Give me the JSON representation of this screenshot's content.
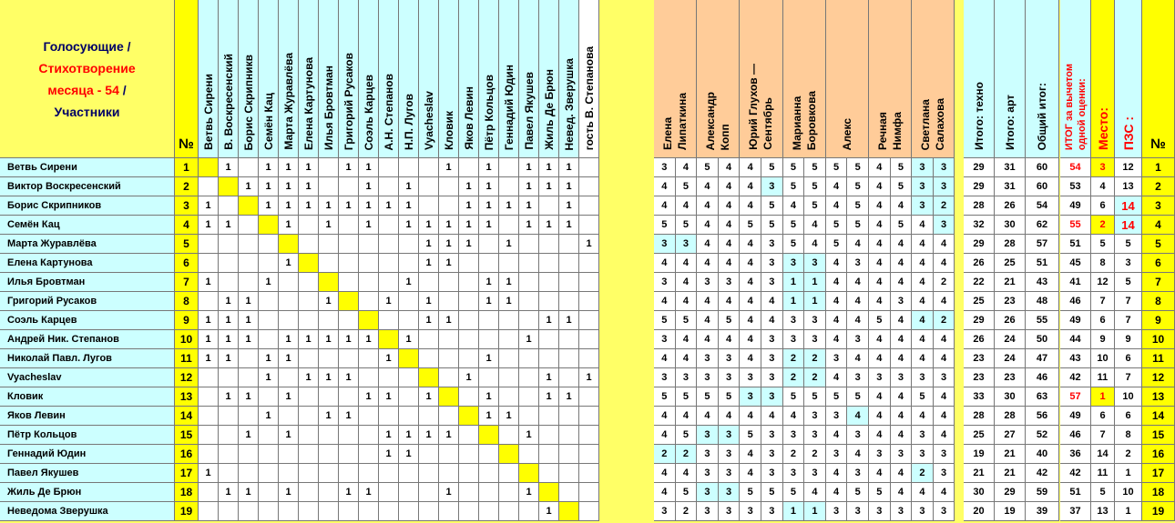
{
  "header": {
    "title_line1": "Голосующие /",
    "title_line2": "Стихотворение",
    "title_line3a": "месяца - 54",
    "title_line3b": " /",
    "title_line4": "Участники",
    "num_label": "№",
    "right_num_label": "№"
  },
  "voters": [
    "Ветвь Сирени",
    "В. Воскресенский",
    "Борис Скрипникв",
    "Семён Кац",
    "Марта Журавлёва",
    "Елена Картунова",
    "Илья Бровтман",
    "Григорий Русаков",
    "Соэль Карцев",
    "А.Н. Степанов",
    "Н.П. Лугов",
    "Vyacheslav",
    "Кловик",
    "Яков Левин",
    "Пётр Кольцов",
    "Геннадий Юдин",
    "Павел Якушев",
    "Жиль Де Брюн",
    "Невед. Зверушка",
    "гость В. Степанова"
  ],
  "experts": [
    [
      "Елена",
      "Липаткина"
    ],
    [
      "Александр",
      "Копп"
    ],
    [
      "Юрий Глухов —",
      "Сентябрь"
    ],
    [
      "Марианна",
      "Боровкова"
    ],
    [
      "Алекс",
      ""
    ],
    [
      "Речная",
      "Нимфа"
    ],
    [
      "Светлана",
      "Салахова"
    ]
  ],
  "totals_headers": [
    "Итого: техно",
    "Итого: арт",
    "Общий итог:"
  ],
  "itog_header": [
    "ИТОГ за вычетом",
    "одной оценки:"
  ],
  "place_header": "Место:",
  "pzs_header": "ПЗС :",
  "colors": {
    "background": "#ffff66",
    "names": "#ccffff",
    "votes": "#ffffff",
    "diag": "#ffff00",
    "expert_head": "#ffcc99",
    "expert_hi": "#ccffff",
    "red": "#ff0000"
  },
  "rows": [
    {
      "name": "Ветвь Сирени",
      "num": "1",
      "votes": [
        "",
        "1",
        "",
        "1",
        "1",
        "1",
        "",
        "1",
        "1",
        "",
        "",
        "",
        "1",
        "",
        "1",
        "",
        "1",
        "1",
        "1",
        ""
      ],
      "experts": [
        "3",
        "4",
        "5",
        "4",
        "4",
        "5",
        "5",
        "5",
        "5",
        "5",
        "4",
        "5",
        "3",
        "3"
      ],
      "hi": [
        12,
        13
      ],
      "techno": "29",
      "art": "31",
      "total": "60",
      "itog": "54",
      "itog_red": true,
      "place": "3",
      "place_hl": true,
      "pzs": "12",
      "right": "1"
    },
    {
      "name": "Виктор Воскресенский",
      "num": "2",
      "votes": [
        "",
        "",
        "1",
        "1",
        "1",
        "1",
        "",
        "",
        "1",
        "",
        "1",
        "",
        "",
        "1",
        "1",
        "",
        "1",
        "1",
        "1",
        ""
      ],
      "experts": [
        "4",
        "5",
        "4",
        "4",
        "4",
        "3",
        "5",
        "5",
        "4",
        "5",
        "4",
        "5",
        "3",
        "3"
      ],
      "hi": [
        5,
        12,
        13
      ],
      "techno": "29",
      "art": "31",
      "total": "60",
      "itog": "53",
      "place": "4",
      "pzs": "13",
      "right": "2"
    },
    {
      "name": "Борис Скрипников",
      "num": "3",
      "votes": [
        "1",
        "",
        "",
        "1",
        "1",
        "1",
        "1",
        "1",
        "1",
        "1",
        "1",
        "",
        "",
        "1",
        "1",
        "1",
        "1",
        "",
        "1",
        ""
      ],
      "experts": [
        "4",
        "4",
        "4",
        "4",
        "4",
        "5",
        "4",
        "5",
        "4",
        "5",
        "4",
        "4",
        "3",
        "2"
      ],
      "hi": [
        12,
        13
      ],
      "techno": "28",
      "art": "26",
      "total": "54",
      "itog": "49",
      "place": "6",
      "pzs": "14",
      "pzs_red": true,
      "right": "3"
    },
    {
      "name": "Семён Кац",
      "num": "4",
      "votes": [
        "1",
        "1",
        "",
        "",
        "1",
        "",
        "1",
        "",
        "1",
        "",
        "1",
        "1",
        "1",
        "1",
        "1",
        "",
        "1",
        "1",
        "1",
        ""
      ],
      "experts": [
        "5",
        "5",
        "4",
        "4",
        "5",
        "5",
        "5",
        "4",
        "5",
        "5",
        "4",
        "5",
        "4",
        "3"
      ],
      "hi": [
        13
      ],
      "techno": "32",
      "art": "30",
      "total": "62",
      "itog": "55",
      "itog_red": true,
      "place": "2",
      "place_hl": true,
      "pzs": "14",
      "pzs_red": true,
      "right": "4"
    },
    {
      "name": "Марта Журавлёва",
      "num": "5",
      "votes": [
        "",
        "",
        "",
        "",
        "",
        "",
        "",
        "",
        "",
        "",
        "",
        "1",
        "1",
        "1",
        "",
        "1",
        "",
        "",
        "",
        "1"
      ],
      "experts": [
        "3",
        "3",
        "4",
        "4",
        "4",
        "3",
        "5",
        "4",
        "5",
        "4",
        "4",
        "4",
        "4",
        "4"
      ],
      "hi": [
        0,
        1
      ],
      "techno": "29",
      "art": "28",
      "total": "57",
      "itog": "51",
      "place": "5",
      "pzs": "5",
      "right": "5"
    },
    {
      "name": "Елена Картунова",
      "num": "6",
      "votes": [
        "",
        "",
        "",
        "",
        "1",
        "",
        "",
        "",
        "",
        "",
        "",
        "1",
        "1",
        "",
        "",
        "",
        "",
        "",
        "",
        ""
      ],
      "experts": [
        "4",
        "4",
        "4",
        "4",
        "4",
        "3",
        "3",
        "3",
        "4",
        "3",
        "4",
        "4",
        "4",
        "4"
      ],
      "hi": [
        6,
        7
      ],
      "techno": "26",
      "art": "25",
      "total": "51",
      "itog": "45",
      "place": "8",
      "pzs": "3",
      "right": "6"
    },
    {
      "name": "Илья Бровтман",
      "num": "7",
      "votes": [
        "1",
        "",
        "",
        "1",
        "",
        "",
        "",
        "",
        "",
        "",
        "1",
        "",
        "",
        "",
        "1",
        "1",
        "",
        "",
        "",
        ""
      ],
      "experts": [
        "3",
        "4",
        "3",
        "3",
        "4",
        "3",
        "1",
        "1",
        "4",
        "4",
        "4",
        "4",
        "4",
        "2"
      ],
      "hi": [
        6,
        7
      ],
      "techno": "22",
      "art": "21",
      "total": "43",
      "itog": "41",
      "place": "12",
      "pzs": "5",
      "right": "7"
    },
    {
      "name": "Григорий Русаков",
      "num": "8",
      "votes": [
        "",
        "1",
        "1",
        "",
        "",
        "",
        "1",
        "",
        "",
        "1",
        "",
        "1",
        "",
        "",
        "1",
        "1",
        "",
        "",
        "",
        ""
      ],
      "experts": [
        "4",
        "4",
        "4",
        "4",
        "4",
        "4",
        "1",
        "1",
        "4",
        "4",
        "4",
        "3",
        "4",
        "4"
      ],
      "hi": [
        6,
        7
      ],
      "techno": "25",
      "art": "23",
      "total": "48",
      "itog": "46",
      "place": "7",
      "pzs": "7",
      "right": "8"
    },
    {
      "name": "Соэль Карцев",
      "num": "9",
      "votes": [
        "1",
        "1",
        "1",
        "",
        "",
        "",
        "",
        "",
        "",
        "",
        "",
        "1",
        "1",
        "",
        "",
        "",
        "",
        "1",
        "1",
        ""
      ],
      "experts": [
        "5",
        "5",
        "4",
        "5",
        "4",
        "4",
        "3",
        "3",
        "4",
        "4",
        "5",
        "4",
        "4",
        "2"
      ],
      "hi": [
        12,
        13
      ],
      "techno": "29",
      "art": "26",
      "total": "55",
      "itog": "49",
      "place": "6",
      "pzs": "7",
      "right": "9"
    },
    {
      "name": "Андрей Ник. Степанов",
      "num": "10",
      "votes": [
        "1",
        "1",
        "1",
        "",
        "1",
        "1",
        "1",
        "1",
        "1",
        "",
        "1",
        "",
        "",
        "",
        "",
        "",
        "1",
        "",
        "",
        ""
      ],
      "experts": [
        "3",
        "4",
        "4",
        "4",
        "4",
        "3",
        "3",
        "3",
        "4",
        "3",
        "4",
        "4",
        "4",
        "4"
      ],
      "hi": [],
      "techno": "26",
      "art": "24",
      "total": "50",
      "itog": "44",
      "place": "9",
      "pzs": "9",
      "right": "10"
    },
    {
      "name": "Николай Павл. Лугов",
      "num": "11",
      "votes": [
        "1",
        "1",
        "",
        "1",
        "1",
        "",
        "",
        "",
        "",
        "1",
        "",
        "",
        "",
        "",
        "1",
        "",
        "",
        "",
        "",
        ""
      ],
      "experts": [
        "4",
        "4",
        "3",
        "3",
        "4",
        "3",
        "2",
        "2",
        "3",
        "4",
        "4",
        "4",
        "4",
        "4"
      ],
      "hi": [
        6,
        7
      ],
      "techno": "23",
      "art": "24",
      "total": "47",
      "itog": "43",
      "place": "10",
      "pzs": "6",
      "right": "11"
    },
    {
      "name": "Vyacheslav",
      "num": "12",
      "votes": [
        "",
        "",
        "",
        "1",
        "",
        "1",
        "1",
        "1",
        "",
        "",
        "",
        "",
        "",
        "1",
        "",
        "",
        "",
        "1",
        "",
        "1"
      ],
      "experts": [
        "3",
        "3",
        "3",
        "3",
        "3",
        "3",
        "2",
        "2",
        "4",
        "3",
        "3",
        "3",
        "3",
        "3"
      ],
      "hi": [
        6,
        7
      ],
      "techno": "23",
      "art": "23",
      "total": "46",
      "itog": "42",
      "place": "11",
      "pzs": "7",
      "right": "12"
    },
    {
      "name": "Кловик",
      "num": "13",
      "votes": [
        "",
        "1",
        "1",
        "",
        "1",
        "",
        "",
        "",
        "1",
        "1",
        "",
        "1",
        "",
        "",
        "1",
        "",
        "",
        "1",
        "1",
        ""
      ],
      "experts": [
        "5",
        "5",
        "5",
        "5",
        "3",
        "3",
        "5",
        "5",
        "5",
        "5",
        "4",
        "4",
        "5",
        "4"
      ],
      "hi": [
        4,
        5
      ],
      "techno": "33",
      "art": "30",
      "total": "63",
      "itog": "57",
      "itog_red": true,
      "place": "1",
      "place_hl": true,
      "pzs": "10",
      "right": "13"
    },
    {
      "name": "Яков Левин",
      "num": "14",
      "votes": [
        "",
        "",
        "",
        "1",
        "",
        "",
        "1",
        "1",
        "",
        "",
        "",
        "",
        "",
        "",
        "1",
        "1",
        "",
        "",
        "",
        ""
      ],
      "experts": [
        "4",
        "4",
        "4",
        "4",
        "4",
        "4",
        "4",
        "3",
        "3",
        "4",
        "4",
        "4",
        "4",
        "4"
      ],
      "hi": [
        9
      ],
      "techno": "28",
      "art": "28",
      "total": "56",
      "itog": "49",
      "place": "6",
      "pzs": "6",
      "right": "14"
    },
    {
      "name": "Пётр Кольцов",
      "num": "15",
      "votes": [
        "",
        "",
        "1",
        "",
        "1",
        "",
        "",
        "",
        "",
        "1",
        "1",
        "1",
        "1",
        "",
        "",
        "",
        "1",
        "",
        "",
        ""
      ],
      "experts": [
        "4",
        "5",
        "3",
        "3",
        "5",
        "3",
        "3",
        "3",
        "4",
        "3",
        "4",
        "4",
        "3",
        "4"
      ],
      "hi": [
        2,
        3
      ],
      "techno": "25",
      "art": "27",
      "total": "52",
      "itog": "46",
      "place": "7",
      "pzs": "8",
      "right": "15"
    },
    {
      "name": "Геннадий Юдин",
      "num": "16",
      "votes": [
        "",
        "",
        "",
        "",
        "",
        "",
        "",
        "",
        "",
        "1",
        "1",
        "",
        "",
        "",
        "",
        "",
        "",
        "",
        "",
        ""
      ],
      "experts": [
        "2",
        "2",
        "3",
        "3",
        "4",
        "3",
        "2",
        "2",
        "3",
        "4",
        "3",
        "3",
        "3",
        "3"
      ],
      "hi": [
        0,
        1
      ],
      "techno": "19",
      "art": "21",
      "total": "40",
      "itog": "36",
      "place": "14",
      "pzs": "2",
      "right": "16"
    },
    {
      "name": "Павел Якушев",
      "num": "17",
      "votes": [
        "1",
        "",
        "",
        "",
        "",
        "",
        "",
        "",
        "",
        "",
        "",
        "",
        "",
        "",
        "",
        "",
        "",
        "",
        "",
        ""
      ],
      "experts": [
        "4",
        "4",
        "3",
        "3",
        "4",
        "3",
        "3",
        "3",
        "4",
        "3",
        "4",
        "4",
        "2",
        "3"
      ],
      "hi": [
        12
      ],
      "techno": "21",
      "art": "21",
      "total": "42",
      "itog": "42",
      "place": "11",
      "pzs": "1",
      "right": "17"
    },
    {
      "name": "Жиль Де Брюн",
      "num": "18",
      "votes": [
        "",
        "1",
        "1",
        "",
        "1",
        "",
        "",
        "1",
        "1",
        "",
        "",
        "",
        "1",
        "",
        "",
        "",
        "1",
        "",
        "",
        ""
      ],
      "experts": [
        "4",
        "5",
        "3",
        "3",
        "5",
        "5",
        "5",
        "4",
        "4",
        "5",
        "5",
        "4",
        "4",
        "4"
      ],
      "hi": [
        2,
        3
      ],
      "techno": "30",
      "art": "29",
      "total": "59",
      "itog": "51",
      "place": "5",
      "pzs": "10",
      "right": "18"
    },
    {
      "name": "Неведома Зверушка",
      "num": "19",
      "votes": [
        "",
        "",
        "",
        "",
        "",
        "",
        "",
        "",
        "",
        "",
        "",
        "",
        "",
        "",
        "",
        "",
        "",
        "1",
        "",
        ""
      ],
      "experts": [
        "3",
        "2",
        "3",
        "3",
        "3",
        "3",
        "1",
        "1",
        "3",
        "3",
        "3",
        "3",
        "3",
        "3"
      ],
      "hi": [
        6,
        7
      ],
      "techno": "20",
      "art": "19",
      "total": "39",
      "itog": "37",
      "place": "13",
      "pzs": "1",
      "right": "19"
    }
  ]
}
